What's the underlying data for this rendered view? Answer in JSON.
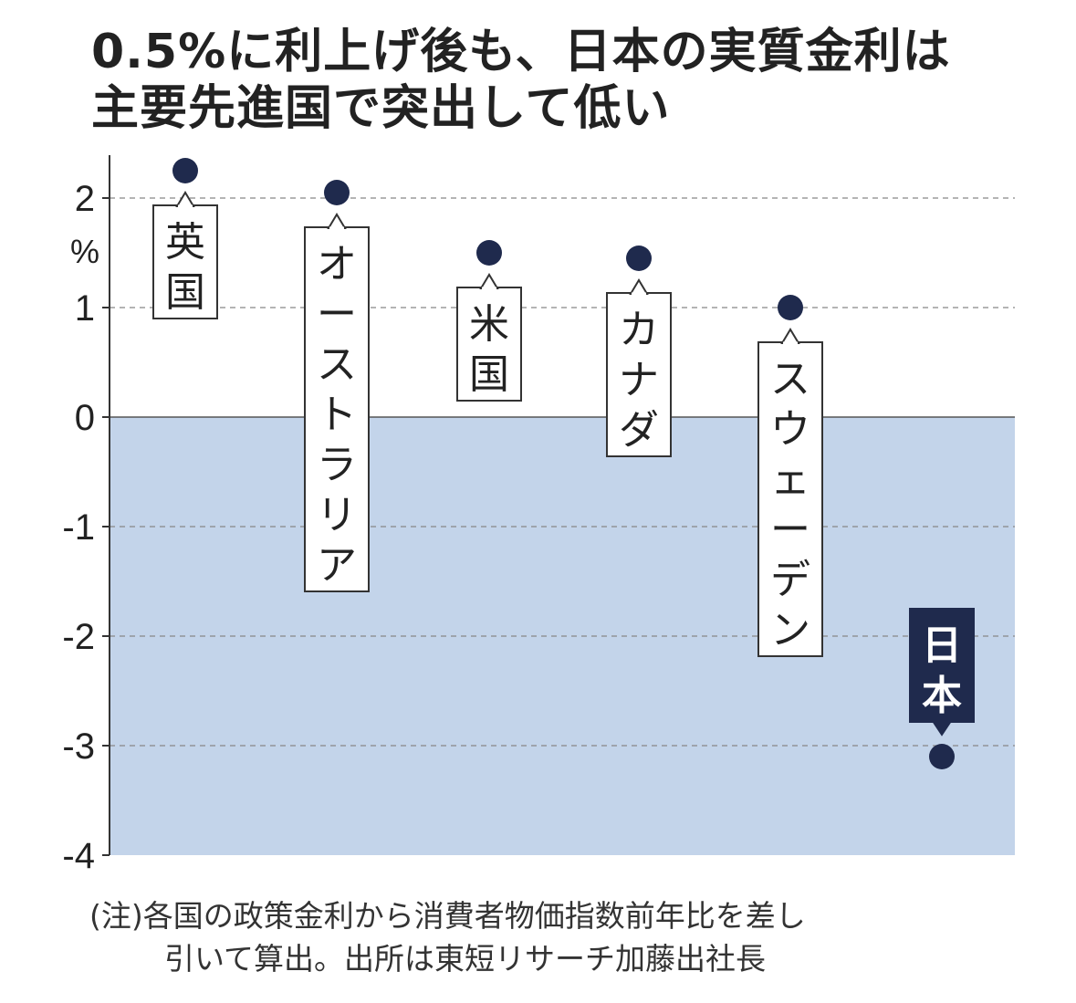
{
  "title": {
    "line1": "0.5%に利上げ後も、日本の実質金利は",
    "line2": "主要先進国で突出して低い"
  },
  "note": {
    "line1": "(注)各国の政策金利から消費者物価指数前年比を差し",
    "line2": "引いて算出。出所は東短リサーチ加藤出社長"
  },
  "colors": {
    "dot": "#1f2a4d",
    "negative_area": "#c3d4ea",
    "grid": "#888888",
    "label_border": "#333333",
    "highlight_label_bg": "#1f2a4d",
    "highlight_label_text": "#ffffff"
  },
  "chart_data": {
    "type": "scatter",
    "title": "0.5%に利上げ後も、日本の実質金利は主要先進国で突出して低い",
    "ylabel": "%",
    "ylim": [
      -4,
      2.4
    ],
    "yticks": [
      "2",
      "1",
      "0",
      "-1",
      "-2",
      "-3",
      "-4"
    ],
    "grid": true,
    "negative_region_shaded": true,
    "points": [
      {
        "label": "英国",
        "value": 2.25,
        "label_position": "below"
      },
      {
        "label": "オーストラリア",
        "value": 2.05,
        "label_position": "below"
      },
      {
        "label": "米国",
        "value": 1.5,
        "label_position": "below"
      },
      {
        "label": "カナダ",
        "value": 1.45,
        "label_position": "below"
      },
      {
        "label": "スウェーデン",
        "value": 1.0,
        "label_position": "below"
      },
      {
        "label": "日本",
        "value": -3.1,
        "label_position": "above",
        "highlight": true
      }
    ]
  }
}
